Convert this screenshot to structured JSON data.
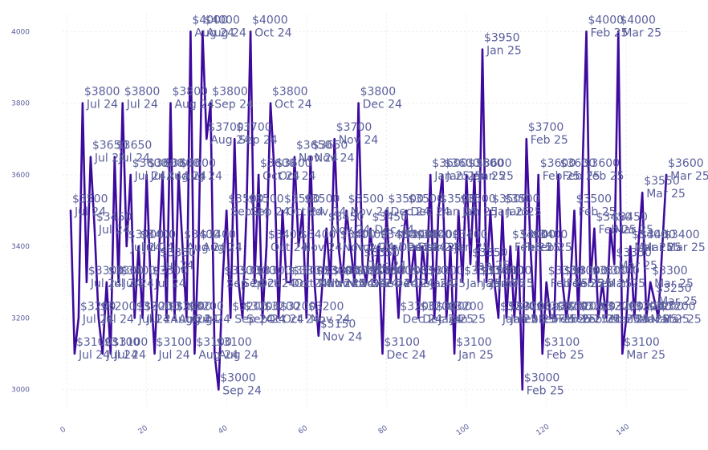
{
  "colors": {
    "line": "#3d0a9e",
    "label": "#5a5e9c",
    "grid": "#ececec"
  },
  "chart_data": {
    "type": "line",
    "title": "",
    "xlabel": "",
    "ylabel": "",
    "xlim": [
      -1,
      155
    ],
    "ylim": [
      2950,
      4050
    ],
    "x_ticks": [
      0,
      20,
      40,
      60,
      80,
      100,
      120,
      140
    ],
    "y_ticks": [
      3000,
      3200,
      3400,
      3600,
      3800,
      4000
    ],
    "grid": true,
    "series": [
      {
        "x": [
          1,
          2,
          3,
          4,
          5,
          6,
          7,
          8,
          9,
          10,
          11,
          12,
          13,
          14,
          15,
          16,
          17,
          18,
          19,
          20,
          21,
          22,
          23,
          24,
          25,
          26,
          27,
          28,
          29,
          30,
          31,
          32,
          33,
          34,
          35,
          36,
          37,
          38,
          39,
          40,
          41,
          42,
          43,
          44,
          45,
          46,
          47,
          48,
          49,
          50,
          51,
          52,
          53,
          54,
          55,
          56,
          57,
          58,
          59,
          60,
          61,
          62,
          63,
          64,
          65,
          66,
          67,
          68,
          69,
          70,
          71,
          72,
          73,
          74,
          75,
          76,
          77,
          78,
          79,
          80,
          81,
          82,
          83,
          84,
          85,
          86,
          87,
          88,
          89,
          90,
          91,
          92,
          93,
          94,
          95,
          96,
          97,
          98,
          99,
          100,
          101,
          102,
          103,
          104,
          105,
          106,
          107,
          108,
          109,
          110,
          111,
          112,
          113,
          114,
          115,
          116,
          117,
          118,
          119,
          120,
          121,
          122,
          123,
          124,
          125,
          126,
          127,
          128,
          129,
          130,
          131,
          132,
          133,
          134,
          135,
          136,
          137,
          138,
          139,
          140,
          141,
          142,
          143,
          144,
          145,
          146,
          147,
          148,
          149,
          150
        ],
        "y": [
          3500,
          3100,
          3200,
          3800,
          3300,
          3650,
          3450,
          3200,
          3100,
          3300,
          3100,
          3650,
          3300,
          3800,
          3400,
          3600,
          3200,
          3400,
          3200,
          3600,
          3300,
          3100,
          3350,
          3600,
          3200,
          3800,
          3200,
          3600,
          3400,
          3200,
          4000,
          3100,
          3400,
          4000,
          3700,
          3800,
          3100,
          3000,
          3300,
          3500,
          3200,
          3700,
          3300,
          3200,
          3500,
          4000,
          3300,
          3600,
          3200,
          3400,
          3800,
          3600,
          3200,
          3500,
          3300,
          3300,
          3650,
          3400,
          3500,
          3200,
          3650,
          3300,
          3150,
          3300,
          3450,
          3300,
          3700,
          3400,
          3300,
          3500,
          3400,
          3300,
          3800,
          3350,
          3300,
          3450,
          3300,
          3400,
          3100,
          3500,
          3300,
          3400,
          3200,
          3400,
          3500,
          3300,
          3400,
          3200,
          3400,
          3300,
          3600,
          3200,
          3500,
          3600,
          3200,
          3400,
          3100,
          3500,
          3300,
          3600,
          3350,
          3600,
          3300,
          3950,
          3300,
          3500,
          3300,
          3200,
          3500,
          3200,
          3400,
          3200,
          3400,
          3000,
          3700,
          3400,
          3200,
          3600,
          3100,
          3300,
          3200,
          3200,
          3600,
          3300,
          3200,
          3300,
          3500,
          3200,
          3600,
          4000,
          3300,
          3450,
          3200,
          3300,
          3200,
          3450,
          3350,
          4000,
          3100,
          3200,
          3400,
          3200,
          3400,
          3550,
          3200,
          3300,
          3250,
          3200,
          3400,
          3600
        ],
        "labels": [
          "$3500\nJul 24",
          "$3100\nJul 24",
          "$3200\nJul 24",
          "$3800\nJul 24",
          "$3300\nJul 24",
          "$3650\nJul 24",
          "$3450\nJul 24",
          "$3200\nJul 24",
          "$3100\nJul 24",
          "$3300\nJul 24",
          "$3100\nJul 24",
          "$3650\nJul 24",
          "$3300\nJul 24",
          "$3800\nJul 24",
          "$3400\nJul 24",
          "$3600\nJul 24",
          "$3200\nJul 24",
          "$3400\nJul 24",
          "$3200\nJul 24",
          "$3600\nJul 24",
          "$3300\nJul 24",
          "$3100\nJul 24",
          "$3350\nJul 24",
          "$3600\nAug 24",
          "$3200\nAug 24",
          "$3800\nAug 24",
          "$3200\nAug 24",
          "$3600\nAug 24",
          "$3400\nAug 24",
          "$3200\nAug 24",
          "$4000\nAug 24",
          "$3100\nAug 24",
          "$3400\nAug 24",
          "$4000\nAug 24",
          "$3700\nAug 24",
          "$3800\nSep 24",
          "$3100\nAug 24",
          "$3000\nSep 24",
          "$3300\nSep 24",
          "$3500\nSep 24",
          "$3200\nSep 24",
          "$3700\nSep 24",
          "$3300\nSep 24",
          "$3200\nSep 24",
          "$3500\nSep 24",
          "$4000\nOct 24",
          "$3300\nOct 24",
          "$3600\nOct 24",
          "$3200\nOct 24",
          "$3400\nOct 24",
          "$3800\nOct 24",
          "$3600\nOct 24",
          "$3200\nOct 24",
          "$3500\nOct 24",
          "$3300\nOct 24",
          "$3300\nOct 24",
          "$3650\nNov 24",
          "$3400\nNov 24",
          "$3500\nNov 24",
          "$3200\nNov 24",
          "$3650\nNov 24",
          "$3300\nNov 24",
          "$3150\nNov 24",
          "$3300\nNov 24",
          "$3450\nNov 24",
          "$3300\nNov 24",
          "$3700\nNov 24",
          "$3400\nNov 24",
          "$3300\nNov 24",
          "$3500\nNov 24",
          "$3400\nNov 24",
          "$3300\nNov 24",
          "$3800\nDec 24",
          "$3350\nDec 24",
          "$3300\nDec 24",
          "$3450\nDec 24",
          "$3300\nDec 24",
          "$3400\nDec 24",
          "$3100\nDec 24",
          "$3500\nDec 24",
          "$3300\nDec 24",
          "$3400\nDec 24",
          "$3200\nDec 24",
          "$3400\nDec 24",
          "$3500\nDec 24",
          "$3300\nDec 24",
          "$3400\nDec 24",
          "$3200\nDec 24",
          "$3400\nJan 25",
          "$3300\nJan 25",
          "$3600\nJan 25",
          "$3200\nJan 25",
          "$3500\nJan 25",
          "$3600\nJan 25",
          "$3200\nJan 25",
          "$3400\nJan 25",
          "$3100\nJan 25",
          "$3500\nJan 25",
          "$3300\nJan 25",
          "$3600\nJan 25",
          "$3350\nJan 25",
          "$3600\nJan 25",
          "$3300\nJan 25",
          "$3950\nJan 25",
          "$3300\nJan 25",
          "$3500\nJan 25",
          "$3300\nJan 25",
          "$3200\nJan 25",
          "$3500\nJan 25",
          "$3200\nJan 25",
          "$3400\nFeb 25",
          "$3200\nFeb 25",
          "$3400\nFeb 25",
          "$3000\nFeb 25",
          "$3700\nFeb 25",
          "$3400\nFeb 25",
          "$3200\nFeb 25",
          "$3600\nFeb 25",
          "$3100\nFeb 25",
          "$3300\nFeb 25",
          "$3200\nFeb 25",
          "$3200\nFeb 25",
          "$3600\nFeb 25",
          "$3300\nFeb 25",
          "$3200\nFeb 25",
          "$3300\nFeb 25",
          "$3500\nFeb 25",
          "$3200\nFeb 25",
          "$3600\nFeb 25",
          "$4000\nFeb 25",
          "$3300\nFeb 25",
          "$3450\nFeb 25",
          "$3200\nFeb 25",
          "$3300\nMar 25",
          "$3200\nMar 25",
          "$3450\nMar 25",
          "$3350\nMar 25",
          "$4000\nMar 25",
          "$3100\nMar 25",
          "$3200\nMar 25",
          "$3400\nMar 25",
          "$3200\nMar 25",
          "$3400\nMar 25",
          "$3550\nMar 25",
          "$3200\nMar 25",
          "$3300\nMar 25",
          "$3250\nMar 25",
          "$3200\nMar 25",
          "$3400\nMar 25",
          "$3600\nMar 25"
        ]
      }
    ]
  }
}
